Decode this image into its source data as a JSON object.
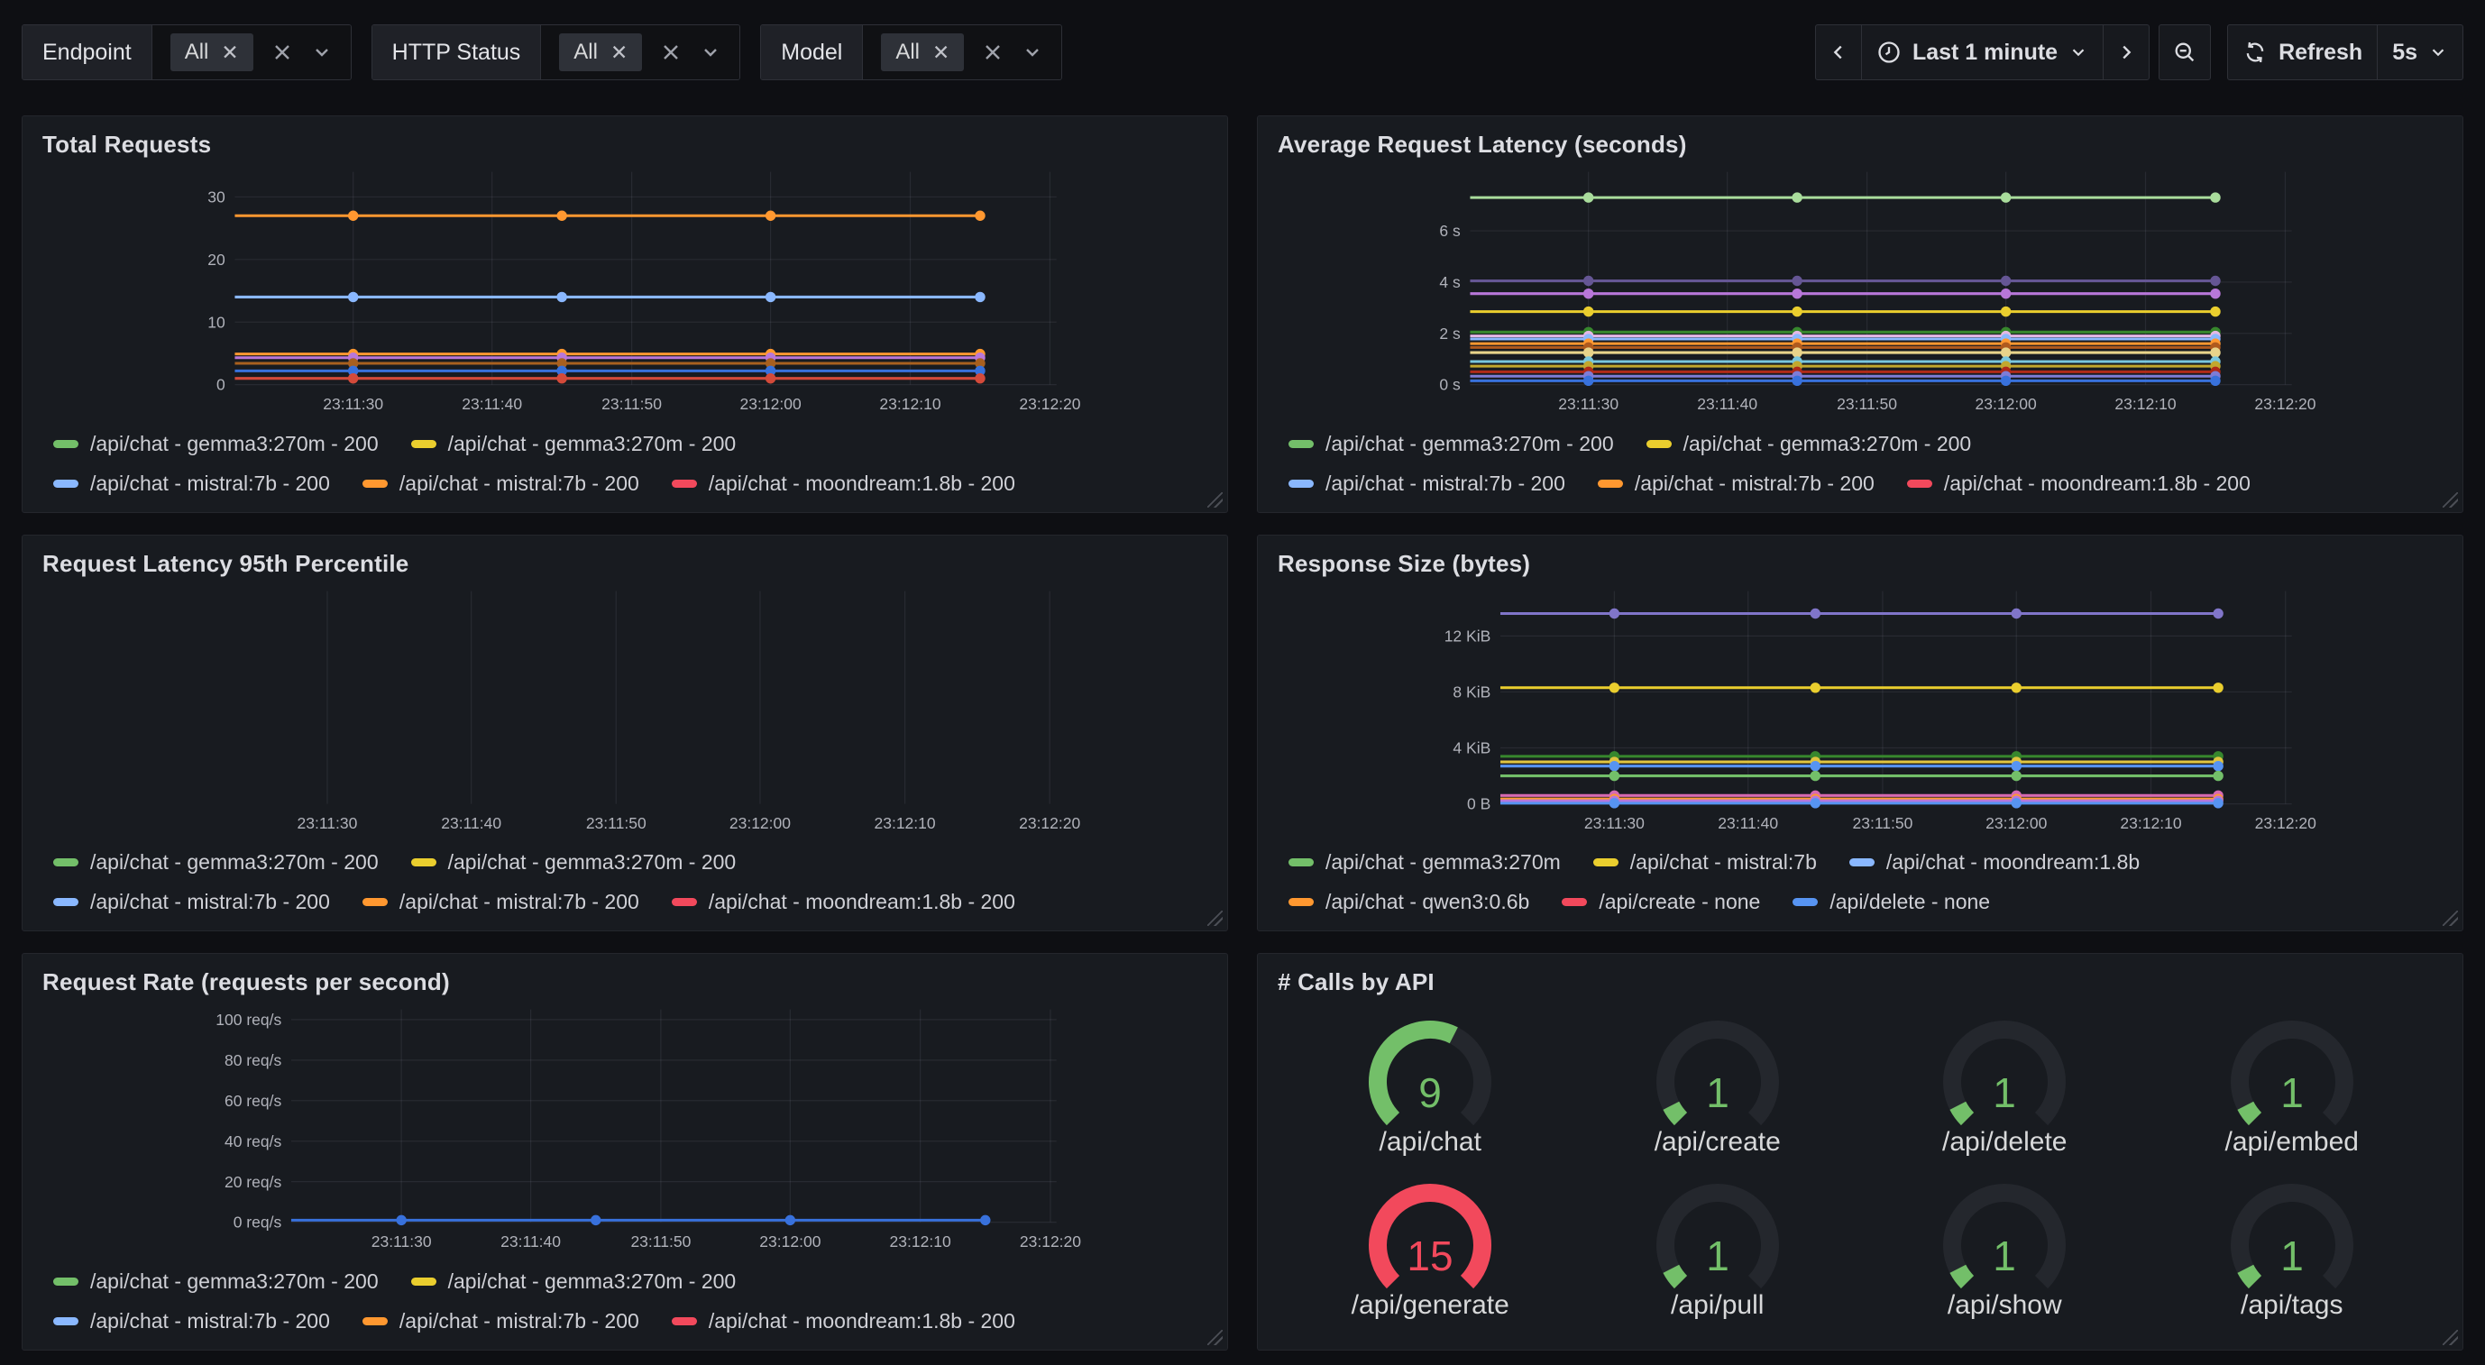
{
  "topbar": {
    "filters": [
      {
        "label": "Endpoint",
        "value": "All"
      },
      {
        "label": "HTTP Status",
        "value": "All"
      },
      {
        "label": "Model",
        "value": "All"
      }
    ],
    "time": {
      "range": "Last 1 minute",
      "refresh": "Refresh",
      "interval": "5s"
    }
  },
  "icons": {
    "chip_remove": "x",
    "clear_selection": "clear-x",
    "dropdown": "chevron-down",
    "back": "chevron-left",
    "forward": "chevron-right",
    "zoom_out": "magnifier-minus",
    "refresh": "circular-arrows",
    "clock": "clock"
  },
  "chart_data": [
    {
      "type": "line",
      "title": "Total Requests",
      "ylim": [
        0,
        34
      ],
      "ylabel": "",
      "grid": true,
      "axis_width": 78,
      "y_ticks": [
        {
          "value": 0,
          "label": "0"
        },
        {
          "value": 10,
          "label": "10"
        },
        {
          "value": 20,
          "label": "20"
        },
        {
          "value": 30,
          "label": "30"
        }
      ],
      "x_ticks": [
        {
          "f": 0.144,
          "label": "23:11:30"
        },
        {
          "f": 0.313,
          "label": "23:11:40"
        },
        {
          "f": 0.483,
          "label": "23:11:50"
        },
        {
          "f": 0.652,
          "label": "23:12:00"
        },
        {
          "f": 0.822,
          "label": "23:12:10"
        },
        {
          "f": 0.992,
          "label": "23:12:20"
        }
      ],
      "dot_fracs": [
        0.144,
        0.398,
        0.652,
        0.907
      ],
      "series": [
        {
          "color": "#ff9830",
          "value": 27
        },
        {
          "color": "#8ab8ff",
          "value": 14
        },
        {
          "color": "#ff9830",
          "value": 4.9
        },
        {
          "color": "#b877d9",
          "value": 4.3
        },
        {
          "color": "#a8601f",
          "value": 3.4
        },
        {
          "color": "#3871dc",
          "value": 2.2
        },
        {
          "color": "#d44a3a",
          "value": 1.0
        }
      ],
      "legend": [
        [
          {
            "color": "#73bf69",
            "label": "/api/chat - gemma3:270m - 200"
          },
          {
            "color": "#eace2e",
            "label": "/api/chat - gemma3:270m - 200"
          }
        ],
        [
          {
            "color": "#8ab8ff",
            "label": "/api/chat - mistral:7b - 200"
          },
          {
            "color": "#ff9830",
            "label": "/api/chat - mistral:7b - 200"
          },
          {
            "color": "#f2495c",
            "label": "/api/chat - moondream:1.8b - 200"
          }
        ]
      ]
    },
    {
      "type": "line",
      "title": "Average Request Latency (seconds)",
      "ylim": [
        0,
        8.3
      ],
      "ylabel": "seconds",
      "grid": true,
      "axis_width": 78,
      "y_ticks": [
        {
          "value": 0,
          "label": "0 s"
        },
        {
          "value": 2,
          "label": "2 s"
        },
        {
          "value": 4,
          "label": "4 s"
        },
        {
          "value": 6,
          "label": "6 s"
        }
      ],
      "x_ticks": [
        {
          "f": 0.144,
          "label": "23:11:30"
        },
        {
          "f": 0.313,
          "label": "23:11:40"
        },
        {
          "f": 0.483,
          "label": "23:11:50"
        },
        {
          "f": 0.652,
          "label": "23:12:00"
        },
        {
          "f": 0.822,
          "label": "23:12:10"
        },
        {
          "f": 0.992,
          "label": "23:12:20"
        }
      ],
      "dot_fracs": [
        0.144,
        0.398,
        0.652,
        0.907
      ],
      "series": [
        {
          "color": "#a9dc9c",
          "value": 7.3
        },
        {
          "color": "#655694",
          "value": 4.05
        },
        {
          "color": "#b877d9",
          "value": 3.55
        },
        {
          "color": "#eace2e",
          "value": 2.85
        },
        {
          "color": "#37872d",
          "value": 2.05
        },
        {
          "color": "#e5b8e5",
          "value": 1.9
        },
        {
          "color": "#8ab8ff",
          "value": 1.78
        },
        {
          "color": "#ff9830",
          "value": 1.6
        },
        {
          "color": "#b05a1e",
          "value": 1.45
        },
        {
          "color": "#e8d38a",
          "value": 1.25
        },
        {
          "color": "#79c7de",
          "value": 0.9
        },
        {
          "color": "#c2a82e",
          "value": 0.72
        },
        {
          "color": "#b02a18",
          "value": 0.5
        },
        {
          "color": "#7e7cd6",
          "value": 0.33
        },
        {
          "color": "#3871dc",
          "value": 0.15
        }
      ],
      "legend": [
        [
          {
            "color": "#73bf69",
            "label": "/api/chat - gemma3:270m - 200"
          },
          {
            "color": "#eace2e",
            "label": "/api/chat - gemma3:270m - 200"
          }
        ],
        [
          {
            "color": "#8ab8ff",
            "label": "/api/chat - mistral:7b - 200"
          },
          {
            "color": "#ff9830",
            "label": "/api/chat - mistral:7b - 200"
          },
          {
            "color": "#f2495c",
            "label": "/api/chat - moondream:1.8b - 200"
          }
        ]
      ]
    },
    {
      "type": "line",
      "title": "Request Latency 95th Percentile",
      "ylim": [
        0,
        1
      ],
      "ylabel": "",
      "grid": true,
      "axis_width": 34,
      "y_ticks": [],
      "x_ticks": [
        {
          "f": 0.144,
          "label": "23:11:30"
        },
        {
          "f": 0.313,
          "label": "23:11:40"
        },
        {
          "f": 0.483,
          "label": "23:11:50"
        },
        {
          "f": 0.652,
          "label": "23:12:00"
        },
        {
          "f": 0.822,
          "label": "23:12:10"
        },
        {
          "f": 0.992,
          "label": "23:12:20"
        }
      ],
      "dot_fracs": [],
      "series": [],
      "legend": [
        [
          {
            "color": "#73bf69",
            "label": "/api/chat - gemma3:270m - 200"
          },
          {
            "color": "#eace2e",
            "label": "/api/chat - gemma3:270m - 200"
          }
        ],
        [
          {
            "color": "#8ab8ff",
            "label": "/api/chat - mistral:7b - 200"
          },
          {
            "color": "#ff9830",
            "label": "/api/chat - mistral:7b - 200"
          },
          {
            "color": "#f2495c",
            "label": "/api/chat - moondream:1.8b - 200"
          }
        ]
      ]
    },
    {
      "type": "line",
      "title": "Response Size (bytes)",
      "ylim": [
        0,
        15.2
      ],
      "ylabel": "KiB",
      "grid": true,
      "axis_width": 122,
      "y_ticks": [
        {
          "value": 0,
          "label": "0 B"
        },
        {
          "value": 4,
          "label": "4 KiB"
        },
        {
          "value": 8,
          "label": "8 KiB"
        },
        {
          "value": 12,
          "label": "12 KiB"
        }
      ],
      "x_ticks": [
        {
          "f": 0.144,
          "label": "23:11:30"
        },
        {
          "f": 0.313,
          "label": "23:11:40"
        },
        {
          "f": 0.483,
          "label": "23:11:50"
        },
        {
          "f": 0.652,
          "label": "23:12:00"
        },
        {
          "f": 0.822,
          "label": "23:12:10"
        },
        {
          "f": 0.992,
          "label": "23:12:20"
        }
      ],
      "dot_fracs": [
        0.144,
        0.398,
        0.652,
        0.907
      ],
      "series": [
        {
          "color": "#8075c9",
          "value": 13.6
        },
        {
          "color": "#eace2e",
          "value": 8.3
        },
        {
          "color": "#37872d",
          "value": 3.4
        },
        {
          "color": "#e0c43f",
          "value": 3.0
        },
        {
          "color": "#5794f2",
          "value": 2.7
        },
        {
          "color": "#73bf69",
          "value": 2.0
        },
        {
          "color": "#d66ab2",
          "value": 0.6
        },
        {
          "color": "#ff9830",
          "value": 0.35
        },
        {
          "color": "#b877d9",
          "value": 0.22
        },
        {
          "color": "#5794f2",
          "value": 0.05
        }
      ],
      "legend": [
        [
          {
            "color": "#73bf69",
            "label": "/api/chat - gemma3:270m"
          },
          {
            "color": "#eace2e",
            "label": "/api/chat - mistral:7b"
          },
          {
            "color": "#8ab8ff",
            "label": "/api/chat - moondream:1.8b"
          }
        ],
        [
          {
            "color": "#ff9830",
            "label": "/api/chat - qwen3:0.6b"
          },
          {
            "color": "#f2495c",
            "label": "/api/create - none"
          },
          {
            "color": "#5794f2",
            "label": "/api/delete - none"
          }
        ]
      ]
    },
    {
      "type": "line",
      "title": "Request Rate (requests per second)",
      "ylim": [
        0,
        105
      ],
      "ylabel": "req/s",
      "grid": true,
      "axis_width": 160,
      "y_ticks": [
        {
          "value": 0,
          "label": "0 req/s"
        },
        {
          "value": 20,
          "label": "20 req/s"
        },
        {
          "value": 40,
          "label": "40 req/s"
        },
        {
          "value": 60,
          "label": "60 req/s"
        },
        {
          "value": 80,
          "label": "80 req/s"
        },
        {
          "value": 100,
          "label": "100 req/s"
        }
      ],
      "x_ticks": [
        {
          "f": 0.144,
          "label": "23:11:30"
        },
        {
          "f": 0.313,
          "label": "23:11:40"
        },
        {
          "f": 0.483,
          "label": "23:11:50"
        },
        {
          "f": 0.652,
          "label": "23:12:00"
        },
        {
          "f": 0.822,
          "label": "23:12:10"
        },
        {
          "f": 0.992,
          "label": "23:12:20"
        }
      ],
      "dot_fracs": [
        0.144,
        0.398,
        0.652,
        0.907
      ],
      "series": [
        {
          "color": "#3871dc",
          "value": 1.0
        }
      ],
      "legend": [
        [
          {
            "color": "#73bf69",
            "label": "/api/chat - gemma3:270m - 200"
          },
          {
            "color": "#eace2e",
            "label": "/api/chat - gemma3:270m - 200"
          }
        ],
        [
          {
            "color": "#8ab8ff",
            "label": "/api/chat - mistral:7b - 200"
          },
          {
            "color": "#ff9830",
            "label": "/api/chat - mistral:7b - 200"
          },
          {
            "color": "#f2495c",
            "label": "/api/chat - moondream:1.8b - 200"
          }
        ]
      ]
    },
    {
      "type": "gauge",
      "title": "# Calls by API",
      "min": 0,
      "max": 15,
      "track_color": "#24272d",
      "items": [
        {
          "label": "/api/chat",
          "value": 9,
          "color": "#73bf69"
        },
        {
          "label": "/api/create",
          "value": 1,
          "color": "#73bf69"
        },
        {
          "label": "/api/delete",
          "value": 1,
          "color": "#73bf69"
        },
        {
          "label": "/api/embed",
          "value": 1,
          "color": "#73bf69"
        },
        {
          "label": "/api/generate",
          "value": 15,
          "color": "#f2495c"
        },
        {
          "label": "/api/pull",
          "value": 1,
          "color": "#73bf69"
        },
        {
          "label": "/api/show",
          "value": 1,
          "color": "#73bf69"
        },
        {
          "label": "/api/tags",
          "value": 1,
          "color": "#73bf69"
        }
      ]
    }
  ]
}
